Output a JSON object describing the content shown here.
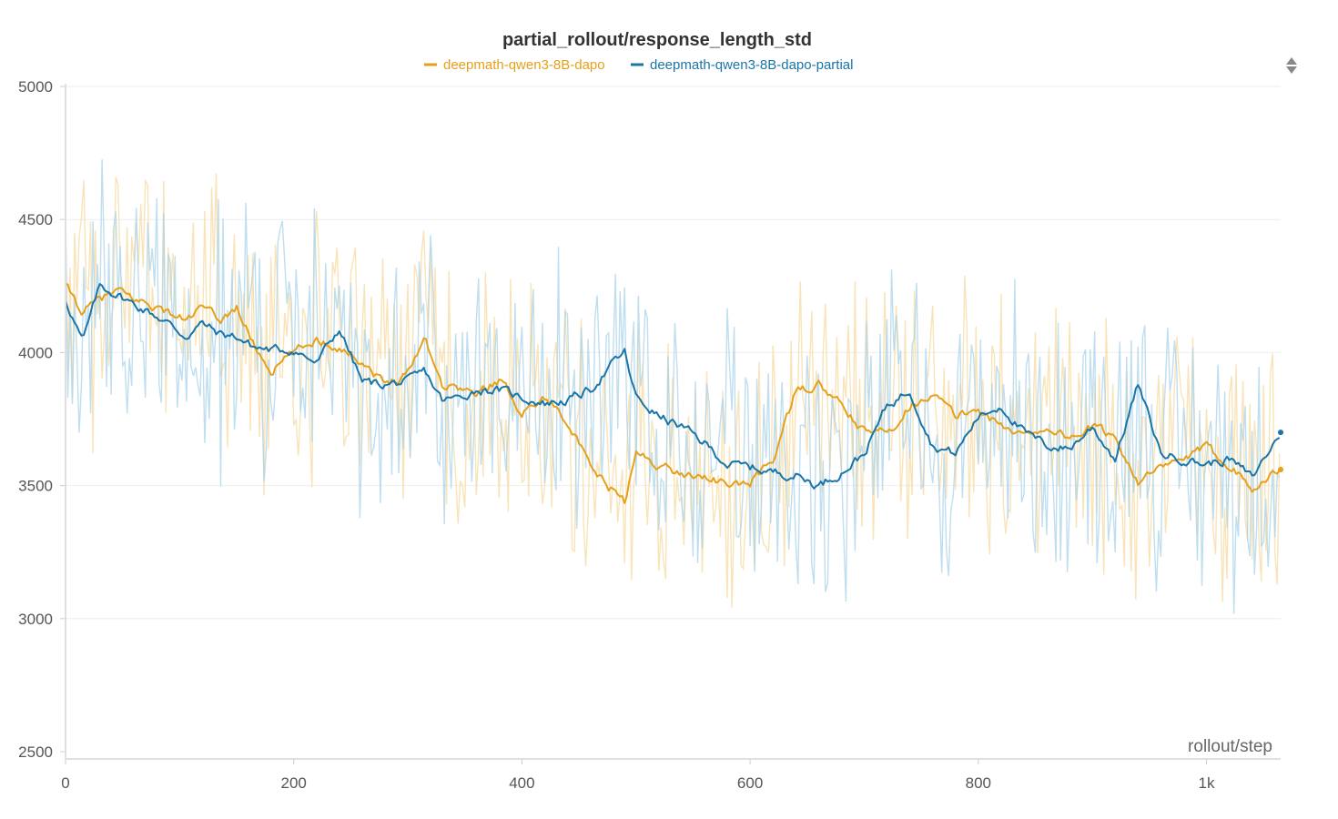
{
  "chart_data": {
    "type": "line",
    "title": "partial_rollout/response_length_std",
    "xlabel": "rollout/step",
    "ylabel": "",
    "xlim": [
      0,
      1065
    ],
    "ylim": [
      2500,
      5000
    ],
    "x_ticks": [
      0,
      200,
      400,
      600,
      800,
      1000
    ],
    "x_tick_labels": [
      "0",
      "200",
      "400",
      "600",
      "800",
      "1k"
    ],
    "y_ticks": [
      2500,
      3000,
      3500,
      4000,
      4500,
      5000
    ],
    "y_tick_labels": [
      "2500",
      "3000",
      "3500",
      "4000",
      "4500",
      "5000"
    ],
    "legend_position": "top-center",
    "grid": true,
    "series": [
      {
        "name": "deepmath-qwen3-8B-dapo",
        "color": "#e6a01a",
        "raw_color": "#f7d9a0",
        "x": [
          0,
          15,
          30,
          45,
          60,
          75,
          90,
          105,
          120,
          135,
          150,
          165,
          180,
          200,
          220,
          240,
          260,
          280,
          300,
          315,
          330,
          345,
          360,
          380,
          400,
          420,
          440,
          460,
          480,
          490,
          500,
          520,
          540,
          560,
          580,
          600,
          620,
          640,
          660,
          680,
          700,
          720,
          740,
          760,
          780,
          800,
          820,
          840,
          860,
          880,
          900,
          920,
          940,
          960,
          980,
          1000,
          1020,
          1040,
          1065
        ],
        "values": [
          4250,
          4150,
          4200,
          4230,
          4200,
          4180,
          4150,
          4120,
          4170,
          4120,
          4170,
          4030,
          3930,
          4000,
          4050,
          4020,
          3970,
          3880,
          3930,
          4060,
          3880,
          3870,
          3840,
          3900,
          3780,
          3830,
          3750,
          3560,
          3480,
          3440,
          3620,
          3580,
          3540,
          3540,
          3500,
          3510,
          3600,
          3850,
          3880,
          3800,
          3700,
          3700,
          3800,
          3850,
          3760,
          3790,
          3720,
          3690,
          3720,
          3680,
          3720,
          3680,
          3520,
          3560,
          3600,
          3640,
          3580,
          3500,
          3560
        ]
      },
      {
        "name": "deepmath-qwen3-8B-dapo-partial",
        "color": "#1a75a8",
        "raw_color": "#a9d3ea",
        "x": [
          0,
          15,
          30,
          45,
          60,
          75,
          90,
          105,
          120,
          135,
          150,
          165,
          180,
          200,
          220,
          240,
          260,
          280,
          300,
          315,
          330,
          345,
          360,
          380,
          400,
          420,
          440,
          460,
          480,
          490,
          500,
          520,
          540,
          560,
          580,
          600,
          620,
          640,
          660,
          680,
          700,
          720,
          740,
          760,
          780,
          800,
          820,
          840,
          860,
          880,
          900,
          920,
          940,
          960,
          980,
          1000,
          1020,
          1040,
          1065
        ],
        "values": [
          4200,
          4040,
          4250,
          4220,
          4180,
          4150,
          4110,
          4060,
          4110,
          4070,
          4060,
          4020,
          4010,
          4010,
          3960,
          4090,
          3890,
          3880,
          3890,
          3930,
          3820,
          3830,
          3860,
          3860,
          3830,
          3810,
          3820,
          3860,
          3960,
          4000,
          3830,
          3760,
          3720,
          3660,
          3580,
          3570,
          3550,
          3540,
          3500,
          3550,
          3620,
          3800,
          3860,
          3650,
          3620,
          3760,
          3800,
          3700,
          3650,
          3640,
          3720,
          3600,
          3880,
          3620,
          3600,
          3580,
          3600,
          3530,
          3700
        ]
      }
    ]
  },
  "ui": {
    "scroll_control": "up-down-arrow-icon"
  }
}
